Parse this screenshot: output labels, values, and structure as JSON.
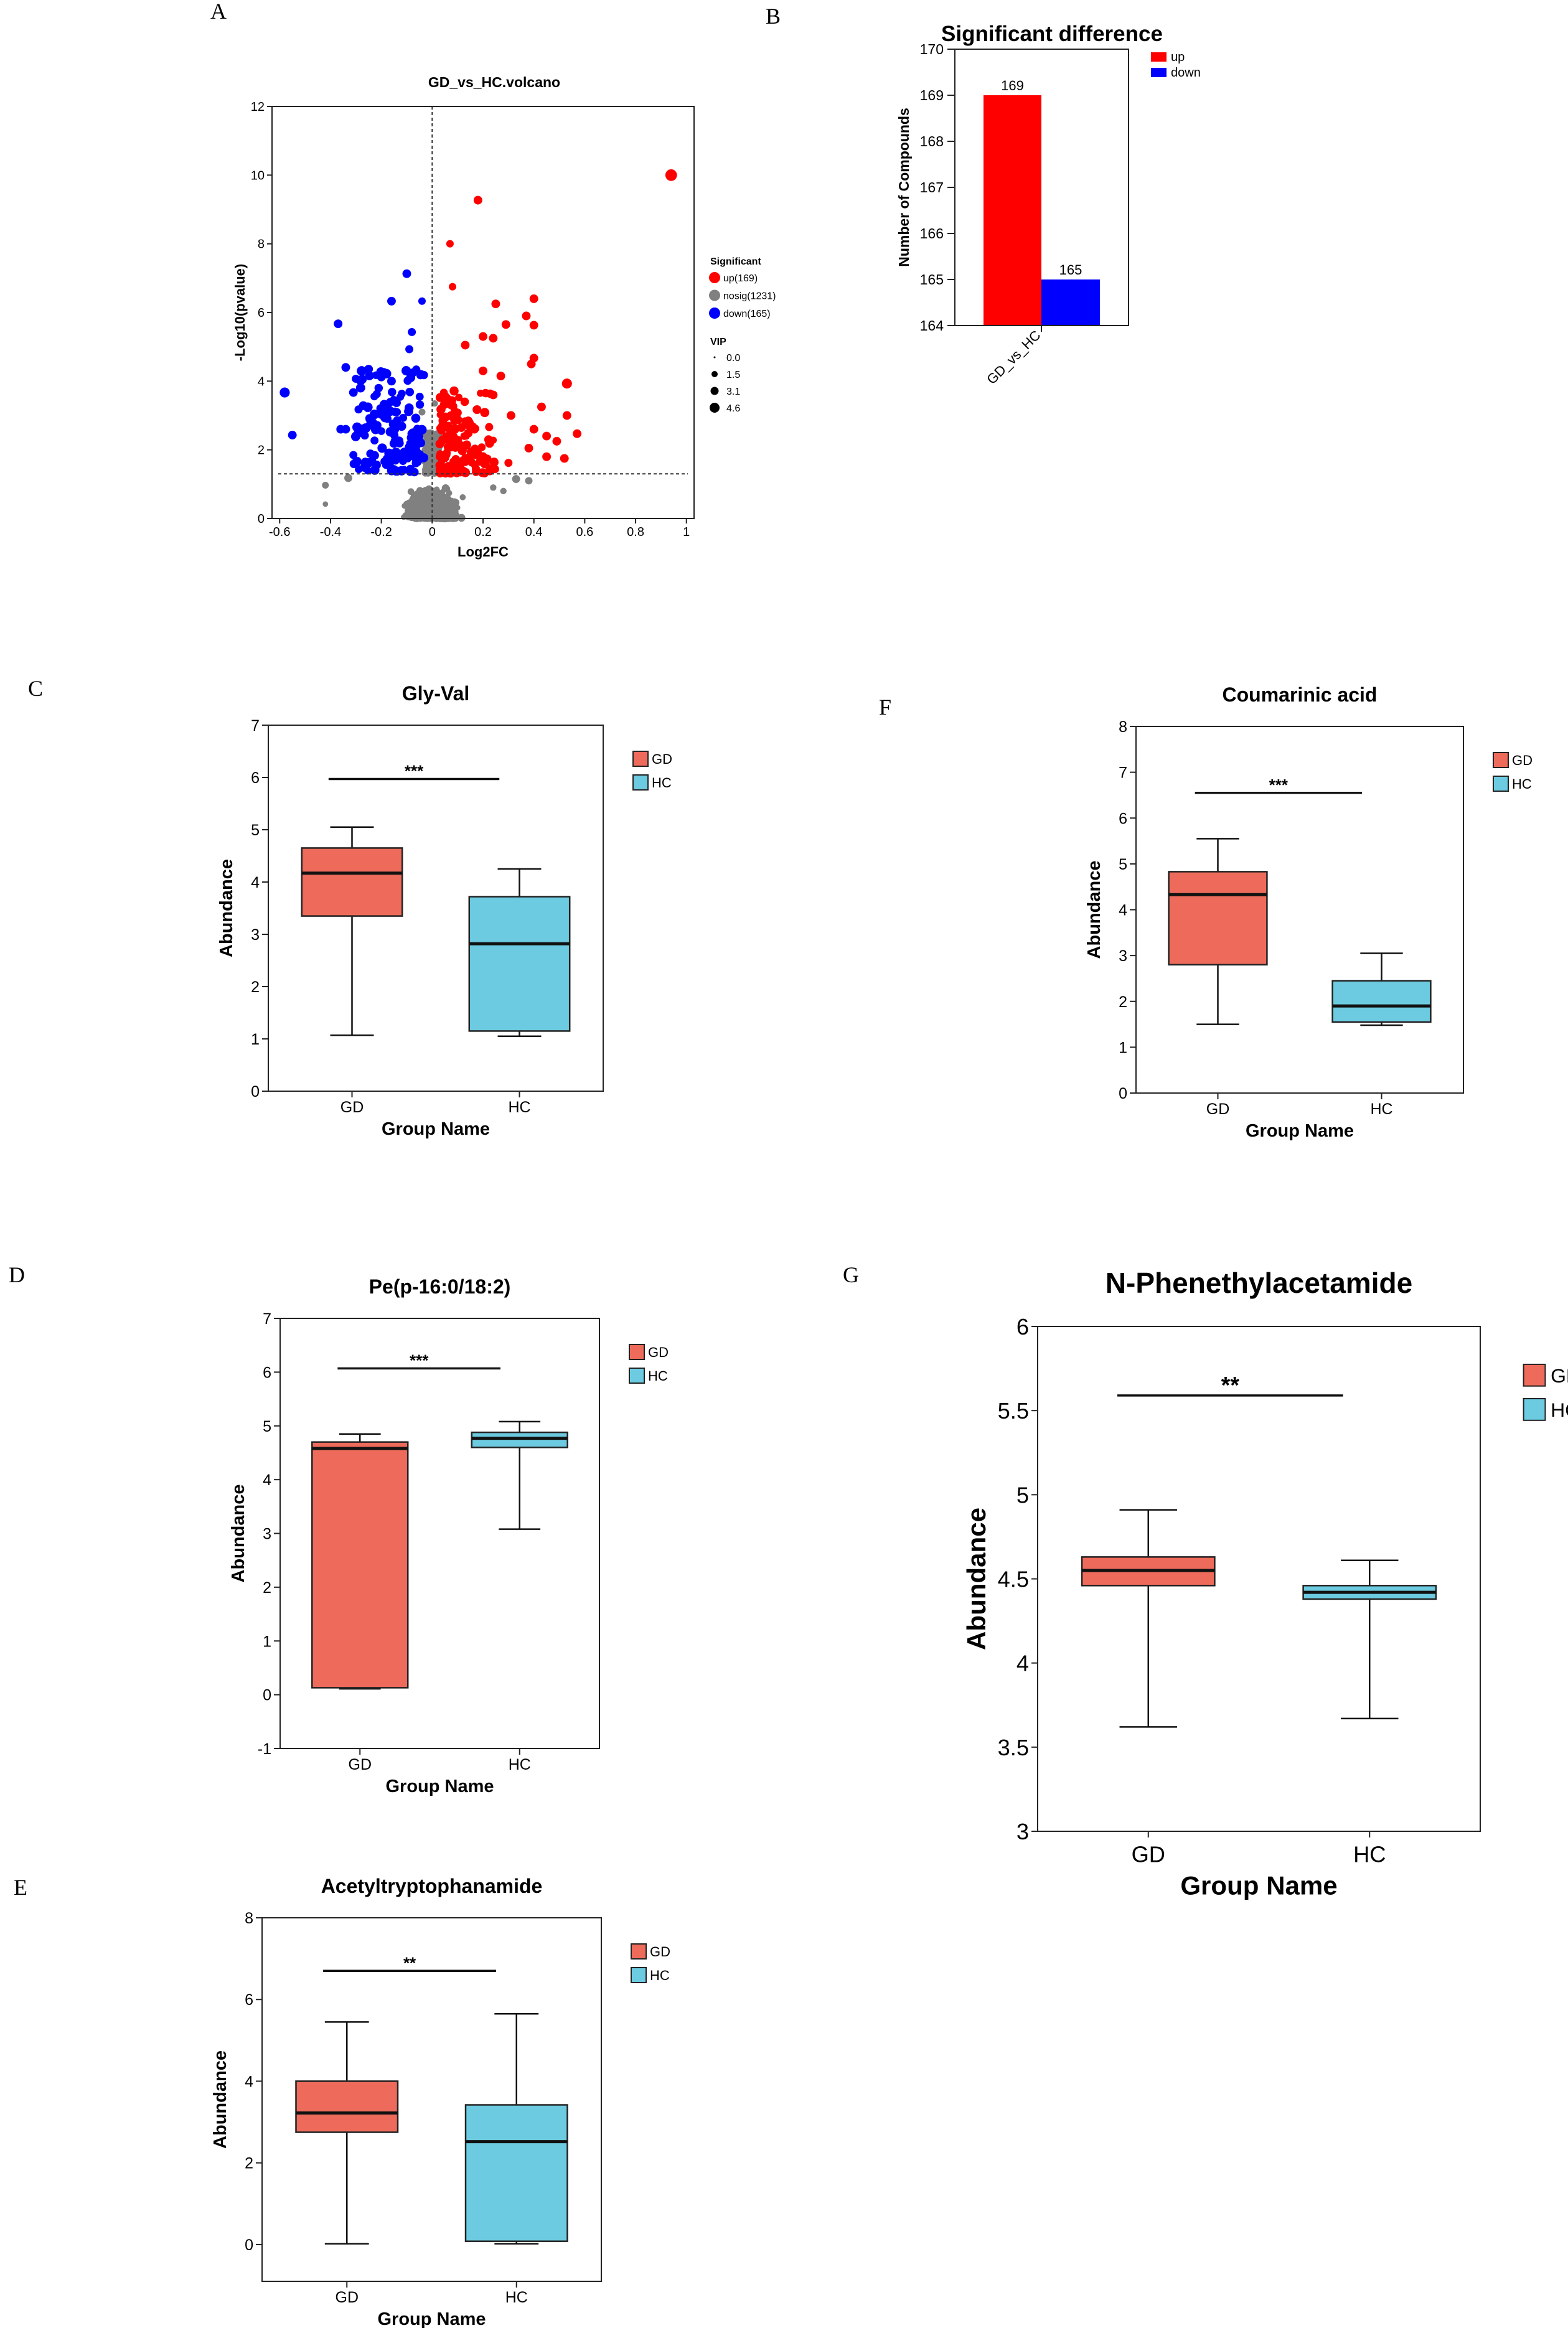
{
  "panel_labels": {
    "A": "A",
    "B": "B",
    "C": "C",
    "D": "D",
    "E": "E",
    "F": "F",
    "G": "G"
  },
  "colors": {
    "up": "#ff0000",
    "down": "#0000ff",
    "nosig": "#808080",
    "gd": "#ee6b5c",
    "hc": "#6ccbe0"
  },
  "chart_data": [
    {
      "id": "A",
      "type": "scatter",
      "title": "GD_vs_HC.volcano",
      "xlabel": "Log2FC",
      "ylabel": "-Log10(pvalue)",
      "xlim": [
        -0.63,
        1.03
      ],
      "ylim": [
        0,
        12
      ],
      "xticks": [
        -0.6,
        -0.4,
        -0.2,
        0,
        0.2,
        0.4,
        0.6,
        0.8,
        1
      ],
      "xtick_labels": [
        "-0.6",
        "-0.4",
        "-0.2",
        "0",
        "0.2",
        "0.4",
        "0.6",
        "0.8",
        "1"
      ],
      "yticks": [
        0,
        2,
        4,
        6,
        8,
        10,
        12
      ],
      "ytick_labels": [
        "0",
        "2",
        "4",
        "6",
        "8",
        "10",
        "12"
      ],
      "threshold_y": 1.3,
      "threshold_x": 0,
      "legend": {
        "title": "Significant",
        "items": [
          "up(169)",
          "nosig(1231)",
          "down(165)"
        ],
        "vip_title": "VIP",
        "vip_items": [
          "0.0",
          "1.5",
          "3.1",
          "4.6"
        ]
      },
      "counts": {
        "up": 169,
        "nosig": 1231,
        "down": 165
      },
      "highlighted_points": {
        "up": [
          [
            0.94,
            10.0,
            4.6
          ],
          [
            0.18,
            9.27,
            3.1
          ],
          [
            0.07,
            8.0,
            2.5
          ],
          [
            0.08,
            6.75,
            2.5
          ],
          [
            0.25,
            6.25,
            3.1
          ],
          [
            0.4,
            6.4,
            3.1
          ],
          [
            0.37,
            5.9,
            3.1
          ],
          [
            0.29,
            5.65,
            3.1
          ],
          [
            0.4,
            5.63,
            3.1
          ],
          [
            0.2,
            5.3,
            3.1
          ],
          [
            0.24,
            5.25,
            3.1
          ],
          [
            0.4,
            4.67,
            3.1
          ],
          [
            0.39,
            4.5,
            3.1
          ],
          [
            0.27,
            4.15,
            3.1
          ],
          [
            0.53,
            3.93,
            3.8
          ],
          [
            0.43,
            3.25,
            3.1
          ],
          [
            0.53,
            3.0,
            3.1
          ],
          [
            0.57,
            2.47,
            3.1
          ],
          [
            0.49,
            2.25,
            3.1
          ],
          [
            0.52,
            1.75,
            3.1
          ],
          [
            0.45,
            1.8,
            3.1
          ],
          [
            0.3,
            1.62,
            2.8
          ],
          [
            0.38,
            2.05,
            3.1
          ],
          [
            0.45,
            2.4,
            3.1
          ],
          [
            0.4,
            2.6,
            3.1
          ],
          [
            0.31,
            3.0,
            3.1
          ],
          [
            0.13,
            5.05,
            3.1
          ],
          [
            0.2,
            4.3,
            3.1
          ],
          [
            0.24,
            3.6,
            3.1
          ]
        ],
        "down": [
          [
            -0.58,
            3.67,
            3.8
          ],
          [
            -0.55,
            2.43,
            3.1
          ],
          [
            -0.37,
            5.67,
            3.1
          ],
          [
            -0.1,
            7.13,
            3.1
          ],
          [
            -0.16,
            6.33,
            3.1
          ],
          [
            -0.04,
            6.33,
            2.5
          ],
          [
            -0.08,
            5.43,
            2.8
          ],
          [
            -0.09,
            4.93,
            2.8
          ],
          [
            -0.34,
            4.4,
            3.1
          ],
          [
            -0.25,
            4.35,
            3.1
          ],
          [
            -0.31,
            3.67,
            3.1
          ],
          [
            -0.34,
            2.6,
            3.1
          ],
          [
            -0.31,
            1.85,
            2.8
          ],
          [
            -0.2,
            4.12,
            3.1
          ],
          [
            -0.16,
            4.0,
            3.1
          ],
          [
            -0.36,
            2.6,
            3.1
          ]
        ],
        "nosig": [
          [
            -0.42,
            0.97,
            2.2
          ],
          [
            -0.42,
            0.42,
            1.5
          ],
          [
            -0.33,
            1.18,
            2.8
          ],
          [
            0.33,
            1.15,
            2.8
          ],
          [
            0.38,
            1.1,
            2.5
          ],
          [
            0.28,
            0.8,
            2.0
          ],
          [
            0.24,
            0.9,
            2.0
          ],
          [
            0.01,
            3.35,
            2.0
          ],
          [
            -0.04,
            3.1,
            2.2
          ]
        ]
      }
    },
    {
      "id": "B",
      "type": "bar",
      "title": "Significant difference",
      "ylabel": "Number of Compounds",
      "categories": [
        "GD_vs_HC"
      ],
      "series": [
        {
          "name": "up",
          "values": [
            169
          ]
        },
        {
          "name": "down",
          "values": [
            165
          ]
        }
      ],
      "data_labels": [
        "169",
        "165"
      ],
      "ylim": [
        164,
        170
      ],
      "yticks": [
        "164",
        "165",
        "166",
        "167",
        "168",
        "169",
        "170"
      ],
      "legend": "top-right"
    },
    {
      "id": "C",
      "type": "box",
      "title": "Gly-Val",
      "xlabel": "Group Name",
      "ylabel": "Abundance",
      "ylim": [
        0,
        7
      ],
      "yticks": [
        "0",
        "1",
        "2",
        "3",
        "4",
        "5",
        "6",
        "7"
      ],
      "categories": [
        "GD",
        "HC"
      ],
      "legend": [
        "GD",
        "HC"
      ],
      "boxes": [
        {
          "name": "GD",
          "min": 1.07,
          "q1": 3.35,
          "median": 4.17,
          "q3": 4.65,
          "max": 5.05
        },
        {
          "name": "HC",
          "min": 1.05,
          "q1": 1.15,
          "median": 2.82,
          "q3": 3.72,
          "max": 4.25
        }
      ],
      "significance": {
        "label": "***",
        "y": 5.97
      }
    },
    {
      "id": "F",
      "type": "box",
      "title": "Coumarinic acid",
      "xlabel": "Group Name",
      "ylabel": "Abundance",
      "ylim": [
        0,
        8
      ],
      "yticks": [
        "0",
        "1",
        "2",
        "3",
        "4",
        "5",
        "6",
        "7",
        "8"
      ],
      "categories": [
        "GD",
        "HC"
      ],
      "legend": [
        "GD",
        "HC"
      ],
      "boxes": [
        {
          "name": "GD",
          "min": 1.5,
          "q1": 2.8,
          "median": 4.33,
          "q3": 4.83,
          "max": 5.55
        },
        {
          "name": "HC",
          "min": 1.48,
          "q1": 1.55,
          "median": 1.9,
          "q3": 2.45,
          "max": 3.05
        }
      ],
      "significance": {
        "label": "***",
        "y": 6.55
      }
    },
    {
      "id": "D",
      "type": "box",
      "title": "Pe(p-16:0/18:2)",
      "xlabel": "Group Name",
      "ylabel": "Abundance",
      "ylim": [
        -1,
        7
      ],
      "yticks": [
        "-1",
        "0",
        "1",
        "2",
        "3",
        "4",
        "5",
        "6",
        "7"
      ],
      "categories": [
        "GD",
        "HC"
      ],
      "legend": [
        "GD",
        "HC"
      ],
      "boxes": [
        {
          "name": "GD",
          "min": 0.11,
          "q1": 0.13,
          "median": 4.58,
          "q3": 4.7,
          "max": 4.85
        },
        {
          "name": "HC",
          "min": 3.08,
          "q1": 4.6,
          "median": 4.77,
          "q3": 4.88,
          "max": 5.08
        }
      ],
      "significance": {
        "label": "***",
        "y": 6.07
      }
    },
    {
      "id": "G",
      "type": "box",
      "title": "N-Phenethylacetamide",
      "xlabel": "Group Name",
      "ylabel": "Abundance",
      "ylim": [
        3,
        6
      ],
      "yticks": [
        "3",
        "3.5",
        "4",
        "4.5",
        "5",
        "5.5",
        "6"
      ],
      "categories": [
        "GD",
        "HC"
      ],
      "legend": [
        "GD",
        "HC"
      ],
      "boxes": [
        {
          "name": "GD",
          "min": 3.62,
          "q1": 4.46,
          "median": 4.55,
          "q3": 4.63,
          "max": 4.91
        },
        {
          "name": "HC",
          "min": 3.67,
          "q1": 4.38,
          "median": 4.42,
          "q3": 4.46,
          "max": 4.61
        }
      ],
      "significance": {
        "label": "**",
        "y": 5.59
      }
    },
    {
      "id": "E",
      "type": "box",
      "title": "Acetyltryptophanamide",
      "xlabel": "Group Name",
      "ylabel": "Abundance",
      "ylim": [
        -1,
        8
      ],
      "yticks": [
        "0",
        "2",
        "4",
        "6",
        "8"
      ],
      "ytick_values": [
        0,
        2,
        4,
        6,
        8
      ],
      "categories": [
        "GD",
        "HC"
      ],
      "legend": [
        "GD",
        "HC"
      ],
      "boxes": [
        {
          "name": "GD",
          "min": 0.02,
          "q1": 2.75,
          "median": 3.22,
          "q3": 4.0,
          "max": 5.45
        },
        {
          "name": "HC",
          "min": 0.02,
          "q1": 0.08,
          "median": 2.52,
          "q3": 3.42,
          "max": 5.65
        }
      ],
      "significance": {
        "label": "**",
        "y": 6.7
      }
    }
  ]
}
